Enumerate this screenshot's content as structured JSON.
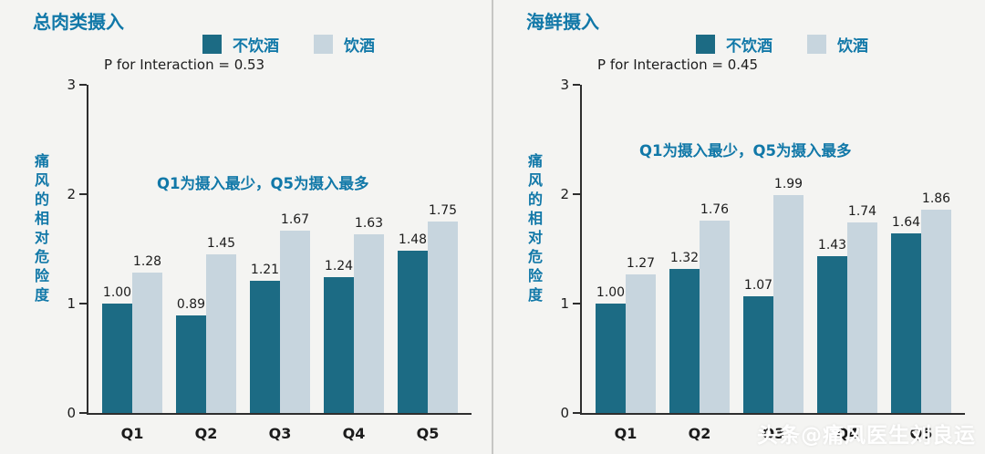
{
  "watermark": "头条@痛风医生刘良运",
  "colors": {
    "accent_text": "#1178a8",
    "bar_dark": "#1c6b84",
    "bar_light": "#c7d5de",
    "axis": "#2e2e2e",
    "background": "#f4f4f2"
  },
  "chart_data": [
    {
      "type": "bar",
      "title": "总肉类摄入",
      "p_label": "P for Interaction = 0.53",
      "annotation": "Q1为摄入最少，Q5为摄入最多",
      "ylabel": "痛风的相对危险度",
      "categories": [
        "Q1",
        "Q2",
        "Q3",
        "Q4",
        "Q5"
      ],
      "series": [
        {
          "name": "不饮酒",
          "color": "#1c6b84",
          "values": [
            1.0,
            0.89,
            1.21,
            1.24,
            1.48
          ]
        },
        {
          "name": "饮酒",
          "color": "#c7d5de",
          "values": [
            1.28,
            1.45,
            1.67,
            1.63,
            1.75
          ]
        }
      ],
      "ylim": [
        0,
        3
      ],
      "yticks": [
        0,
        1,
        2,
        3
      ],
      "grid": false,
      "legend_position": "top"
    },
    {
      "type": "bar",
      "title": "海鲜摄入",
      "p_label": "P for Interaction = 0.45",
      "annotation": "Q1为摄入最少，Q5为摄入最多",
      "ylabel": "痛风的相对危险度",
      "categories": [
        "Q1",
        "Q2",
        "Q3",
        "Q4",
        "Q5"
      ],
      "series": [
        {
          "name": "不饮酒",
          "color": "#1c6b84",
          "values": [
            1.0,
            1.32,
            1.07,
            1.43,
            1.64
          ]
        },
        {
          "name": "饮酒",
          "color": "#c7d5de",
          "values": [
            1.27,
            1.76,
            1.99,
            1.74,
            1.86
          ]
        }
      ],
      "ylim": [
        0,
        3
      ],
      "yticks": [
        0,
        1,
        2,
        3
      ],
      "grid": false,
      "legend_position": "top"
    }
  ]
}
